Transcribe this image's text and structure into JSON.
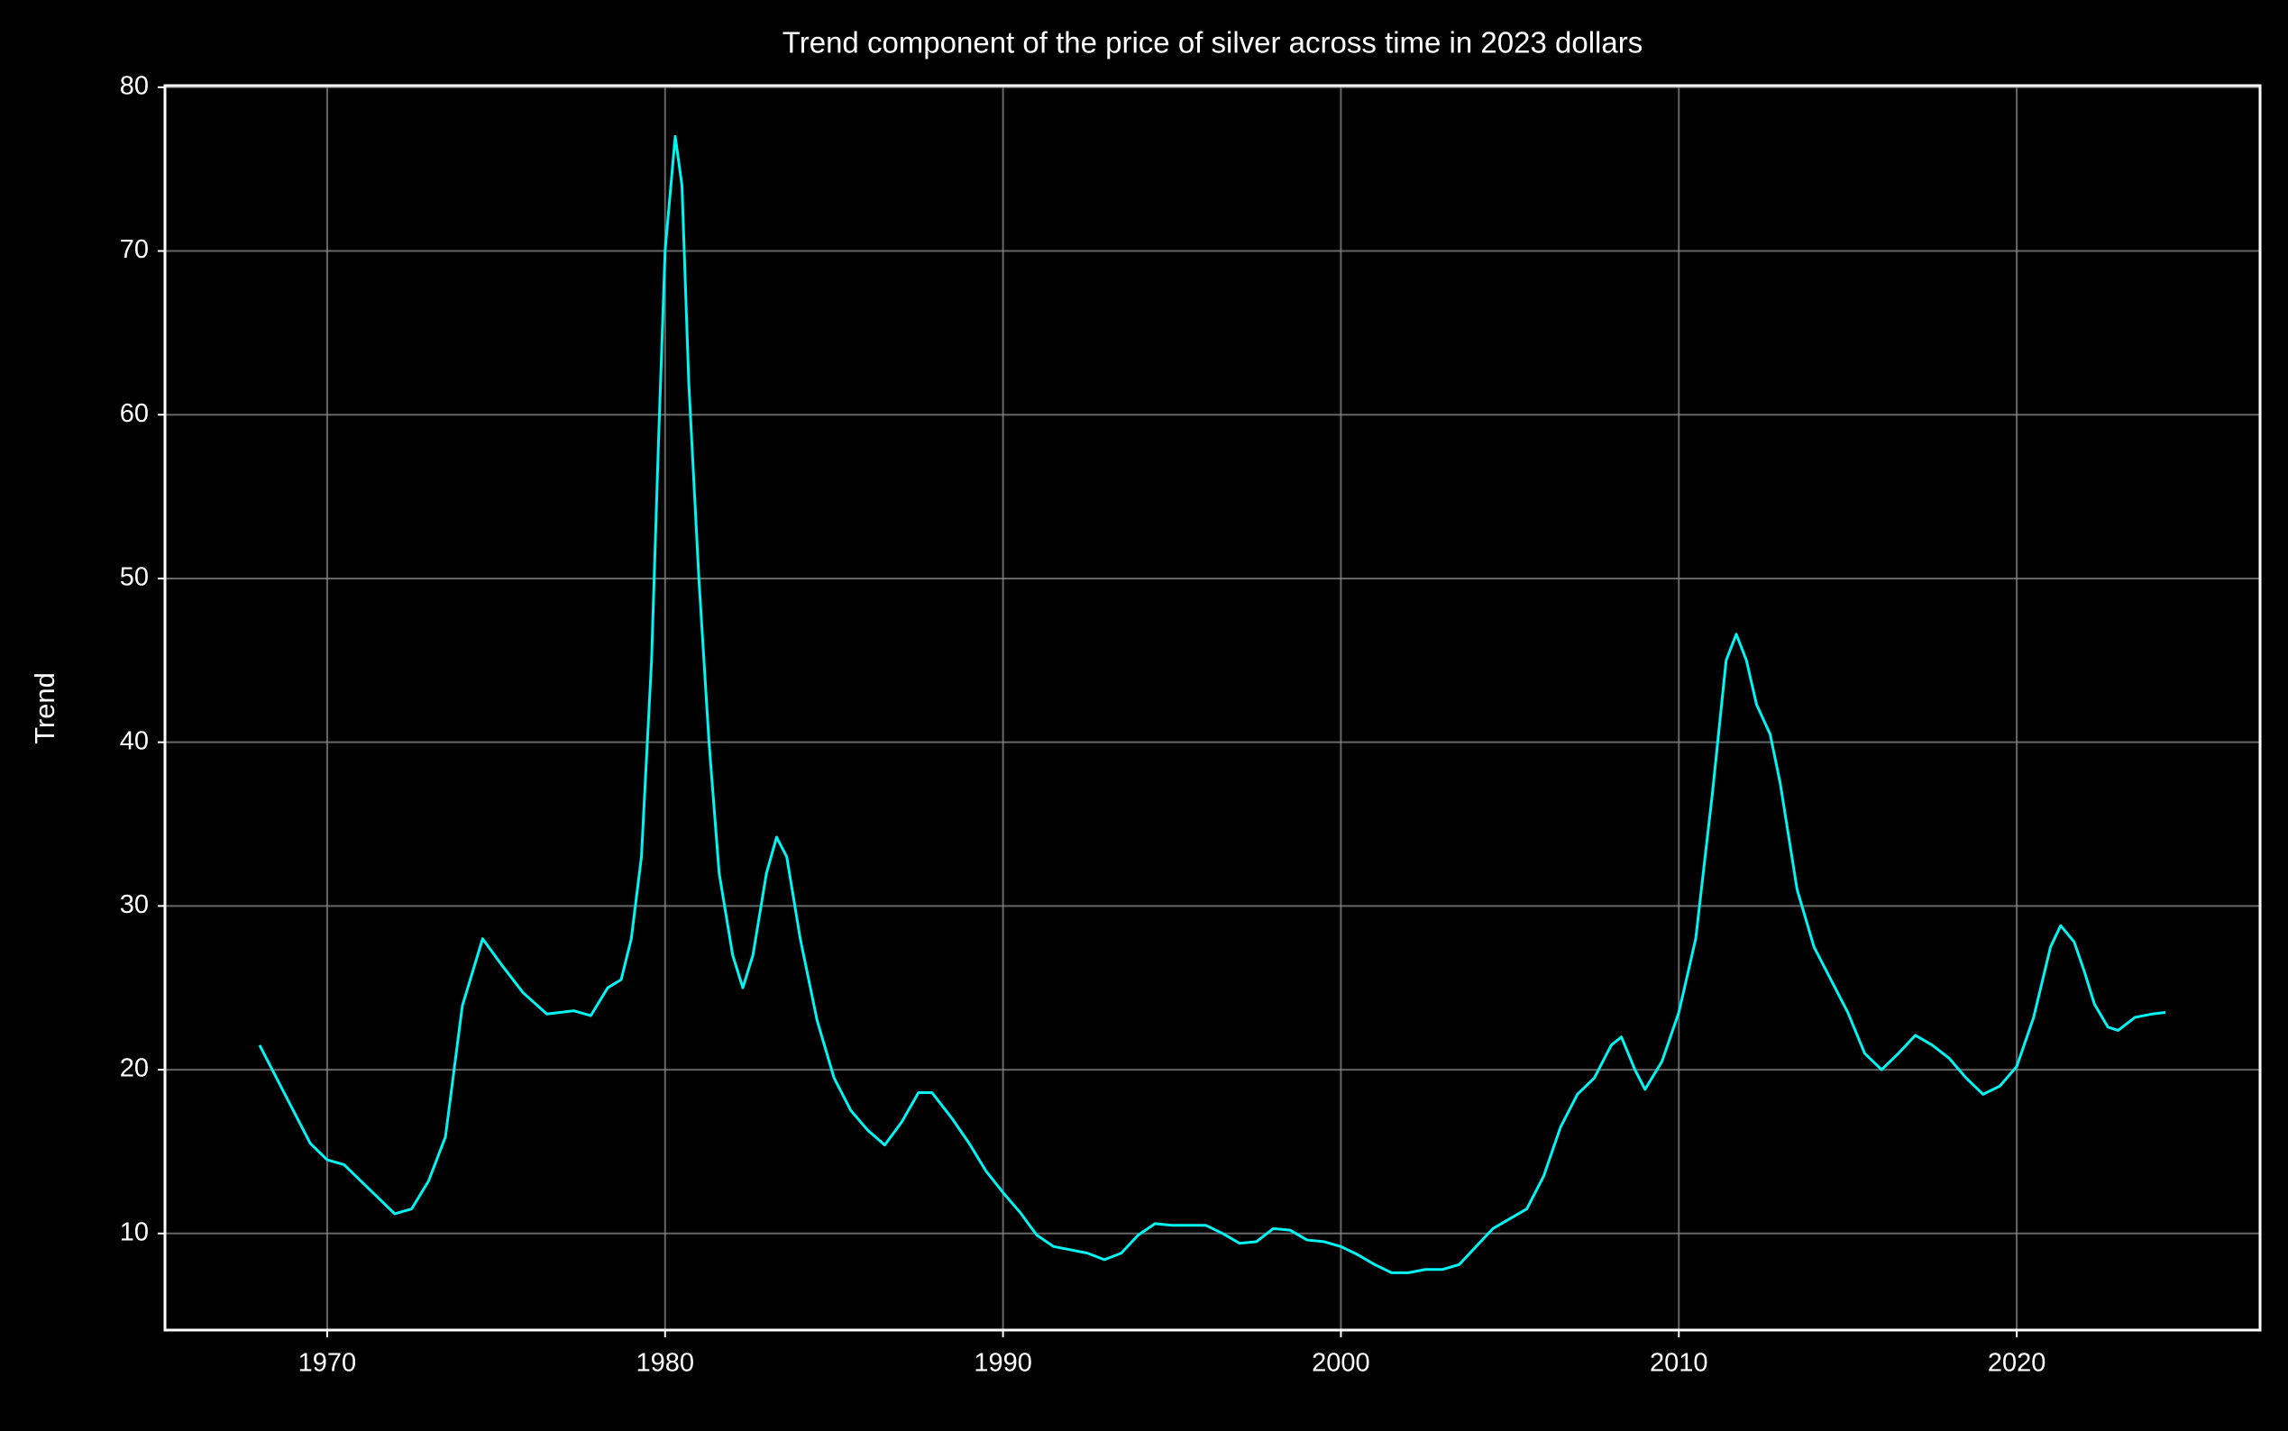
{
  "chart_data": {
    "type": "line",
    "title": "Trend component of the price of silver across time in 2023 dollars",
    "y_label": "Trend",
    "x": [
      1968.0,
      1968.5,
      1969.0,
      1969.5,
      1970.0,
      1970.5,
      1971.0,
      1971.5,
      1972.0,
      1972.5,
      1973.0,
      1973.5,
      1974.0,
      1974.6,
      1975.2,
      1975.8,
      1976.5,
      1977.3,
      1977.8,
      1978.3,
      1978.7,
      1979.0,
      1979.3,
      1979.6,
      1979.8,
      1980.0,
      1980.3,
      1980.5,
      1980.7,
      1981.0,
      1981.3,
      1981.6,
      1982.0,
      1982.3,
      1982.6,
      1983.0,
      1983.3,
      1983.6,
      1984.0,
      1984.5,
      1985.0,
      1985.5,
      1986.0,
      1986.5,
      1987.0,
      1987.5,
      1987.9,
      1988.5,
      1989.0,
      1989.5,
      1990.0,
      1990.5,
      1991.0,
      1991.5,
      1992.0,
      1992.5,
      1993.0,
      1993.5,
      1994.0,
      1994.5,
      1995.0,
      1995.5,
      1996.0,
      1996.5,
      1997.0,
      1997.5,
      1998.0,
      1998.5,
      1999.0,
      1999.5,
      2000.0,
      2000.5,
      2001.0,
      2001.5,
      2002.0,
      2002.5,
      2003.0,
      2003.5,
      2004.0,
      2004.5,
      2005.0,
      2005.5,
      2006.0,
      2006.5,
      2007.0,
      2007.5,
      2008.0,
      2008.3,
      2008.7,
      2009.0,
      2009.5,
      2010.0,
      2010.5,
      2011.0,
      2011.4,
      2011.7,
      2012.0,
      2012.3,
      2012.7,
      2013.0,
      2013.5,
      2014.0,
      2014.5,
      2015.0,
      2015.5,
      2016.0,
      2016.5,
      2017.0,
      2017.5,
      2018.0,
      2018.5,
      2019.0,
      2019.5,
      2020.0,
      2020.5,
      2021.0,
      2021.3,
      2021.7,
      2022.0,
      2022.3,
      2022.7,
      2023.0,
      2023.5,
      2024.0,
      2024.4
    ],
    "series": [
      {
        "name": "Trend",
        "color": "#00f5f5",
        "values": [
          21.5,
          19.5,
          17.5,
          15.5,
          14.5,
          14.2,
          13.2,
          12.2,
          11.2,
          11.5,
          13.2,
          15.9,
          23.9,
          28.0,
          26.3,
          24.7,
          23.4,
          23.6,
          23.3,
          25.0,
          25.5,
          28.0,
          33.0,
          45.0,
          58.0,
          70.0,
          77.0,
          74.0,
          62.0,
          50.0,
          40.0,
          32.0,
          27.0,
          25.0,
          27.0,
          32.0,
          34.2,
          33.0,
          28.0,
          23.0,
          19.5,
          17.5,
          16.3,
          15.4,
          16.8,
          18.6,
          18.6,
          17.0,
          15.5,
          13.8,
          12.5,
          11.3,
          9.9,
          9.2,
          9.0,
          8.8,
          8.4,
          8.8,
          9.9,
          10.6,
          10.5,
          10.5,
          10.5,
          10.0,
          9.4,
          9.5,
          10.3,
          10.2,
          9.6,
          9.5,
          9.2,
          8.7,
          8.1,
          7.6,
          7.6,
          7.8,
          7.8,
          8.1,
          9.2,
          10.3,
          10.9,
          11.5,
          13.5,
          16.5,
          18.5,
          19.5,
          21.5,
          22.0,
          20.0,
          18.8,
          20.5,
          23.5,
          28.0,
          37.0,
          45.0,
          46.6,
          45.0,
          42.3,
          40.5,
          37.5,
          31.0,
          27.5,
          25.5,
          23.5,
          21.0,
          20.0,
          21.0,
          22.1,
          21.5,
          20.7,
          19.5,
          18.5,
          19.0,
          20.2,
          23.2,
          27.5,
          28.8,
          27.8,
          26.0,
          24.0,
          22.6,
          22.4,
          23.2,
          23.4,
          23.5
        ]
      }
    ],
    "xlim": [
      1965.2,
      2027.2
    ],
    "xticks": [
      1970,
      1980,
      1990,
      2000,
      2010,
      2020
    ],
    "ylim": [
      4.1,
      80.1
    ],
    "yticks": [
      10,
      20,
      30,
      40,
      50,
      60,
      70,
      80
    ],
    "grid": true
  }
}
